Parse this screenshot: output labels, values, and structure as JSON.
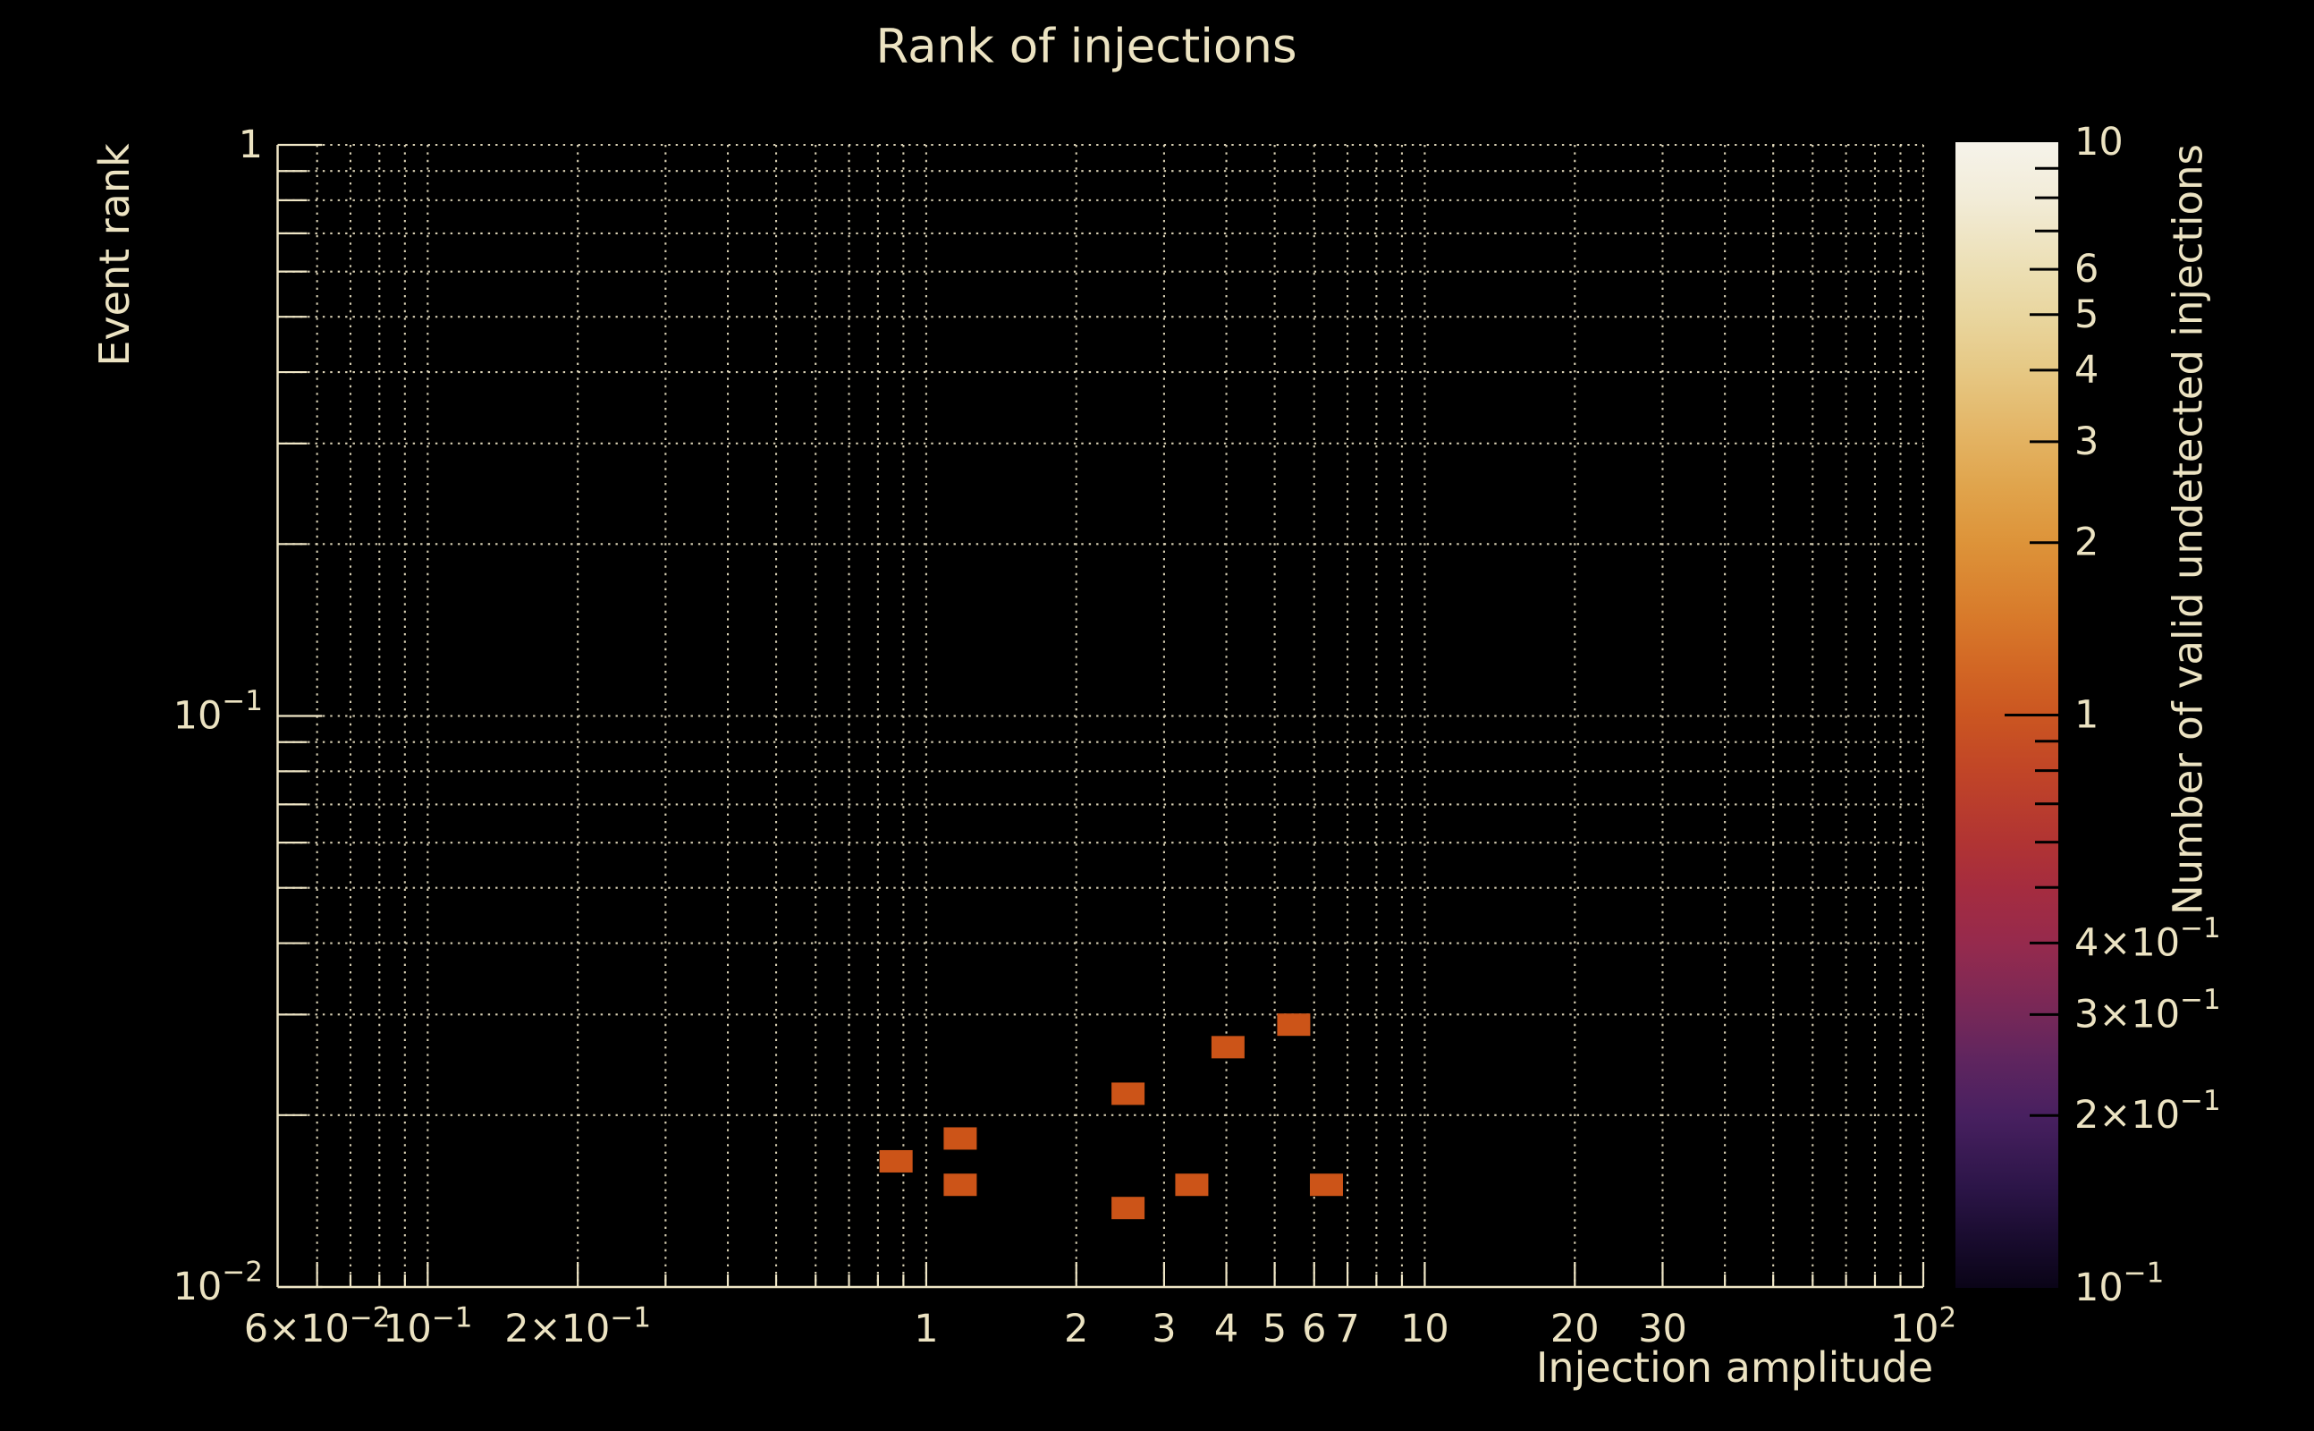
{
  "figure": {
    "background": "#000000",
    "text_color": "#ece3c2",
    "grid_color": "#efe6c6"
  },
  "chart_data": {
    "type": "scatter",
    "title": "Rank of injections",
    "xlabel": "Injection amplitude",
    "ylabel": "Event rank",
    "xscale": "log",
    "yscale": "log",
    "xlim": [
      0.05,
      100
    ],
    "ylim": [
      0.01,
      1
    ],
    "grid": true,
    "grid_style": "dotted",
    "x_ticks": [
      {
        "v": 0.06,
        "label": "6×10^−2"
      },
      {
        "v": 0.1,
        "label": "10^−1"
      },
      {
        "v": 0.2,
        "label": "2×10^−1"
      },
      {
        "v": 1,
        "label": "1"
      },
      {
        "v": 2,
        "label": "2"
      },
      {
        "v": 3,
        "label": "3"
      },
      {
        "v": 4,
        "label": "4"
      },
      {
        "v": 5,
        "label": "5"
      },
      {
        "v": 6,
        "label": "6"
      },
      {
        "v": 7,
        "label": "7"
      },
      {
        "v": 10,
        "label": "10"
      },
      {
        "v": 20,
        "label": "20"
      },
      {
        "v": 30,
        "label": "30"
      },
      {
        "v": 100,
        "label": "10^2"
      }
    ],
    "x_minor": [
      0.06,
      0.07,
      0.08,
      0.09,
      0.1,
      0.2,
      0.3,
      0.4,
      0.5,
      0.6,
      0.7,
      0.8,
      0.9,
      1,
      2,
      3,
      4,
      5,
      6,
      7,
      8,
      9,
      10,
      20,
      30,
      40,
      50,
      60,
      70,
      80,
      90,
      100
    ],
    "y_ticks": [
      {
        "v": 1,
        "label": "1"
      },
      {
        "v": 0.1,
        "label": "10^−1"
      },
      {
        "v": 0.01,
        "label": "10^−2"
      }
    ],
    "y_minor": [
      1,
      0.9,
      0.8,
      0.7,
      0.6,
      0.5,
      0.4,
      0.3,
      0.2,
      0.1,
      0.09,
      0.08,
      0.07,
      0.06,
      0.05,
      0.04,
      0.03,
      0.02,
      0.01
    ],
    "points": {
      "marker": "square",
      "marker_w": 37,
      "marker_h": 25,
      "color": "#cc5418",
      "value_per_point": 1,
      "data": [
        {
          "x": 0.87,
          "y": 0.0166,
          "n": 1
        },
        {
          "x": 1.17,
          "y": 0.0182,
          "n": 1
        },
        {
          "x": 1.17,
          "y": 0.0151,
          "n": 1
        },
        {
          "x": 2.54,
          "y": 0.0218,
          "n": 1
        },
        {
          "x": 2.54,
          "y": 0.01375,
          "n": 1
        },
        {
          "x": 3.41,
          "y": 0.0151,
          "n": 1
        },
        {
          "x": 4.03,
          "y": 0.0263,
          "n": 1
        },
        {
          "x": 5.46,
          "y": 0.0288,
          "n": 1
        },
        {
          "x": 6.35,
          "y": 0.0151,
          "n": 1
        }
      ]
    },
    "colorbar": {
      "label": "Number of valid undetected injections",
      "scale": "log",
      "lim": [
        0.1,
        10
      ],
      "ticks": [
        {
          "v": 10,
          "label": "10"
        },
        {
          "v": 6,
          "label": "6"
        },
        {
          "v": 5,
          "label": "5"
        },
        {
          "v": 4,
          "label": "4"
        },
        {
          "v": 3,
          "label": "3"
        },
        {
          "v": 2,
          "label": "2"
        },
        {
          "v": 1,
          "label": "1"
        },
        {
          "v": 0.4,
          "label": "4×10^−1"
        },
        {
          "v": 0.3,
          "label": "3×10^−1"
        },
        {
          "v": 0.2,
          "label": "2×10^−1"
        },
        {
          "v": 0.1,
          "label": "10^−1"
        }
      ],
      "minor_ticks": [
        9,
        8,
        7,
        6,
        5,
        4,
        3,
        2,
        1,
        0.9,
        0.8,
        0.7,
        0.6,
        0.5,
        0.4,
        0.3,
        0.2
      ],
      "gradient": [
        {
          "offset": 0.0,
          "color": "#f6f3ea"
        },
        {
          "offset": 0.049,
          "color": "#f2ecd8"
        },
        {
          "offset": 0.111,
          "color": "#ecdfb4"
        },
        {
          "offset": 0.151,
          "color": "#e9d69f"
        },
        {
          "offset": 0.199,
          "color": "#e6c884"
        },
        {
          "offset": 0.261,
          "color": "#e3b261"
        },
        {
          "offset": 0.301,
          "color": "#e0a44c"
        },
        {
          "offset": 0.35,
          "color": "#dd9339"
        },
        {
          "offset": 0.412,
          "color": "#d87b2b"
        },
        {
          "offset": 0.46,
          "color": "#d26624"
        },
        {
          "offset": 0.5,
          "color": "#cb5621"
        },
        {
          "offset": 0.549,
          "color": "#c14527"
        },
        {
          "offset": 0.611,
          "color": "#b13433"
        },
        {
          "offset": 0.651,
          "color": "#a52c3f"
        },
        {
          "offset": 0.699,
          "color": "#962a4d"
        },
        {
          "offset": 0.761,
          "color": "#762858"
        },
        {
          "offset": 0.801,
          "color": "#5f255f"
        },
        {
          "offset": 0.85,
          "color": "#482060"
        },
        {
          "offset": 0.912,
          "color": "#2c1548"
        },
        {
          "offset": 0.96,
          "color": "#180b2d"
        },
        {
          "offset": 1.0,
          "color": "#0a0417"
        }
      ]
    }
  }
}
